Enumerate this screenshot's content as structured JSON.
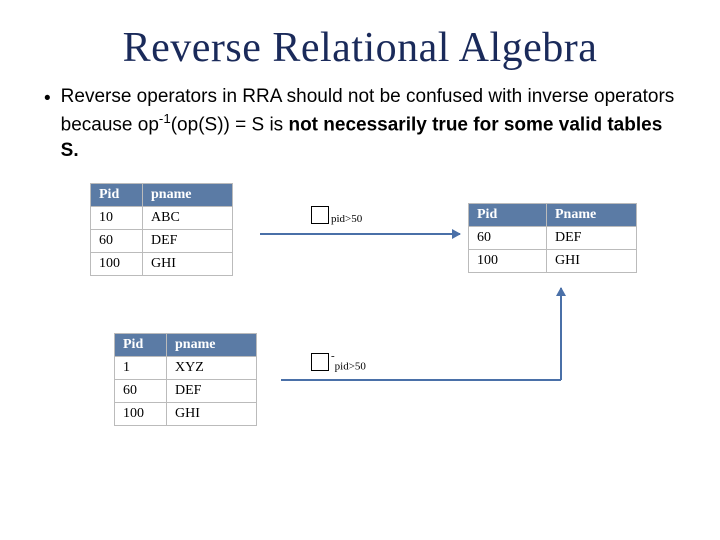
{
  "title": "Reverse Relational Algebra",
  "bullet": {
    "prefix": "Reverse operators in RRA should not be confused with inverse operators because op",
    "sup": "-1",
    "mid": "(op(S)) = S is ",
    "bold": "not necessarily true for some valid tables S."
  },
  "op1": {
    "sub": "pid>50"
  },
  "op2": {
    "sup": "-",
    "sub": "pid>50"
  },
  "table1": {
    "headers": [
      "Pid",
      "pname"
    ],
    "rows": [
      [
        "10",
        "ABC"
      ],
      [
        "60",
        "DEF"
      ],
      [
        "100",
        "GHI"
      ]
    ]
  },
  "table2": {
    "headers": [
      "Pid",
      "pname"
    ],
    "rows": [
      [
        "1",
        "XYZ"
      ],
      [
        "60",
        "DEF"
      ],
      [
        "100",
        "GHI"
      ]
    ]
  },
  "table3": {
    "headers": [
      "Pid",
      "Pname"
    ],
    "rows": [
      [
        "60",
        "DEF"
      ],
      [
        "100",
        "GHI"
      ]
    ]
  },
  "colors": {
    "title": "#1a2a5a",
    "table_header_bg": "#5b7ba5",
    "arrow": "#4a70a8",
    "border": "#bbbbbb"
  }
}
